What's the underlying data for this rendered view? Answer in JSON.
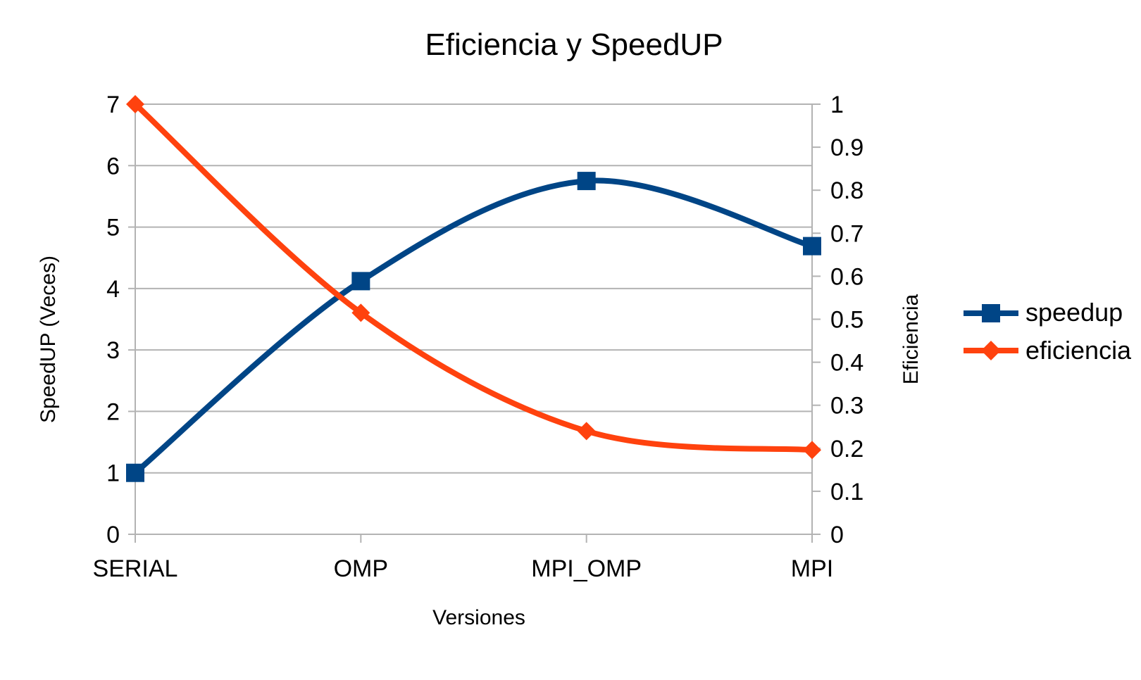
{
  "chart_data": {
    "type": "line",
    "title": "Eficiencia y SpeedUP",
    "xlabel": "Versiones",
    "ylabel": "SpeedUP (Veces)",
    "y2label": "Eficiencia",
    "categories": [
      "SERIAL",
      "OMP",
      "MPI_OMP",
      "MPI"
    ],
    "ylim": [
      0,
      7
    ],
    "y2lim": [
      0,
      1
    ],
    "yticks": [
      "0",
      "1",
      "2",
      "3",
      "4",
      "5",
      "6",
      "7"
    ],
    "y2ticks": [
      "0",
      "0.1",
      "0.2",
      "0.3",
      "0.4",
      "0.5",
      "0.6",
      "0.7",
      "0.8",
      "0.9",
      "1"
    ],
    "grid": true,
    "smooth": true,
    "legend_position": "right",
    "series": [
      {
        "name": "speedup",
        "axis": "left",
        "marker": "square",
        "color": "#004586",
        "values": [
          1,
          4.12,
          5.75,
          4.69
        ]
      },
      {
        "name": "eficiencia",
        "axis": "right",
        "marker": "diamond",
        "color": "#ff420e",
        "values": [
          1,
          0.515,
          0.24,
          0.196
        ]
      }
    ]
  }
}
